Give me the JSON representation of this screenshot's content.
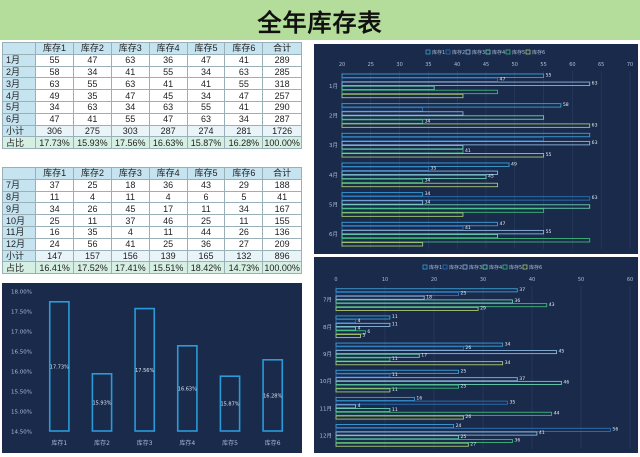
{
  "title": "全年库存表",
  "columns": [
    "",
    "库存1",
    "库存2",
    "库存3",
    "库存4",
    "库存5",
    "库存6",
    "合计"
  ],
  "table1": {
    "rows": [
      {
        "label": "1月",
        "values": [
          "55",
          "47",
          "63",
          "36",
          "47",
          "41",
          "289"
        ]
      },
      {
        "label": "2月",
        "values": [
          "58",
          "34",
          "41",
          "55",
          "34",
          "63",
          "285"
        ]
      },
      {
        "label": "3月",
        "values": [
          "63",
          "55",
          "63",
          "41",
          "41",
          "55",
          "318"
        ]
      },
      {
        "label": "4月",
        "values": [
          "49",
          "35",
          "47",
          "45",
          "34",
          "47",
          "257"
        ]
      },
      {
        "label": "5月",
        "values": [
          "34",
          "63",
          "34",
          "63",
          "55",
          "41",
          "290"
        ]
      },
      {
        "label": "6月",
        "values": [
          "47",
          "41",
          "55",
          "47",
          "63",
          "34",
          "287"
        ]
      },
      {
        "label": "小计",
        "values": [
          "306",
          "275",
          "303",
          "287",
          "274",
          "281",
          "1726"
        ]
      },
      {
        "label": "占比",
        "values": [
          "17.73%",
          "15.93%",
          "17.56%",
          "16.63%",
          "15.87%",
          "16.28%",
          "100.00%"
        ]
      }
    ]
  },
  "table2": {
    "rows": [
      {
        "label": "7月",
        "values": [
          "37",
          "25",
          "18",
          "36",
          "43",
          "29",
          "188"
        ]
      },
      {
        "label": "8月",
        "values": [
          "11",
          "4",
          "11",
          "4",
          "6",
          "5",
          "41"
        ]
      },
      {
        "label": "9月",
        "values": [
          "34",
          "26",
          "45",
          "17",
          "11",
          "34",
          "167"
        ]
      },
      {
        "label": "10月",
        "values": [
          "25",
          "11",
          "37",
          "46",
          "25",
          "11",
          "155"
        ]
      },
      {
        "label": "11月",
        "values": [
          "16",
          "35",
          "4",
          "11",
          "44",
          "26",
          "136"
        ]
      },
      {
        "label": "12月",
        "values": [
          "24",
          "56",
          "41",
          "25",
          "36",
          "27",
          "209"
        ]
      },
      {
        "label": "小计",
        "values": [
          "147",
          "157",
          "156",
          "139",
          "165",
          "132",
          "896"
        ]
      },
      {
        "label": "占比",
        "values": [
          "16.41%",
          "17.52%",
          "17.41%",
          "15.51%",
          "18.42%",
          "14.73%",
          "100.00%"
        ]
      }
    ]
  },
  "colors": {
    "panel": "#1a2a4a",
    "series": [
      "#3aa0d8",
      "#2a72b8",
      "#8ab4dc",
      "#6ad0b0",
      "#3cb878",
      "#a8c870"
    ],
    "bar_outline": "#2a9ad8",
    "axis_text": "#a8bcd8"
  },
  "chart_data": [
    {
      "type": "bar",
      "orientation": "vertical",
      "categories": [
        "库存1",
        "库存2",
        "库存3",
        "库存4",
        "库存5",
        "库存6"
      ],
      "values": [
        17.73,
        15.93,
        17.56,
        16.63,
        15.87,
        16.28
      ],
      "data_labels": [
        "17.73%",
        "15.93%",
        "17.56%",
        "16.63%",
        "15.87%",
        "16.28%"
      ],
      "yticks": [
        "14.50%",
        "15.00%",
        "15.50%",
        "16.00%",
        "16.50%",
        "17.00%",
        "17.50%",
        "18.00%"
      ],
      "ylim": [
        14.5,
        18.0
      ],
      "title": "",
      "xlabel": "",
      "ylabel": "",
      "grid": false
    },
    {
      "type": "bar",
      "orientation": "horizontal",
      "categories": [
        "1月",
        "2月",
        "3月",
        "4月",
        "5月",
        "6月"
      ],
      "legend": [
        "库存1",
        "库存2",
        "库存3",
        "库存4",
        "库存5",
        "库存6"
      ],
      "legend_position": "top",
      "xticks": [
        "20",
        "25",
        "30",
        "35",
        "40",
        "45",
        "50",
        "55",
        "60",
        "65",
        "70"
      ],
      "xlim": [
        20,
        70
      ],
      "series": [
        {
          "name": "库存1",
          "values": [
            55,
            58,
            63,
            49,
            34,
            47
          ]
        },
        {
          "name": "库存2",
          "values": [
            47,
            34,
            55,
            35,
            63,
            41
          ]
        },
        {
          "name": "库存3",
          "values": [
            63,
            41,
            63,
            47,
            34,
            55
          ]
        },
        {
          "name": "库存4",
          "values": [
            36,
            55,
            41,
            45,
            63,
            47
          ]
        },
        {
          "name": "库存5",
          "values": [
            47,
            34,
            41,
            34,
            55,
            63
          ]
        },
        {
          "name": "库存6",
          "values": [
            41,
            63,
            55,
            47,
            41,
            34
          ]
        }
      ],
      "shown_labels": [
        [
          55,
          47,
          63,
          null,
          null,
          null
        ],
        [
          58,
          null,
          null,
          null,
          34,
          41
        ],
        [
          null,
          null,
          63,
          null,
          55,
          63
        ],
        [
          49,
          47,
          null,
          35,
          34,
          null
        ],
        [
          34,
          63,
          34,
          null,
          null,
          null
        ],
        [
          47,
          41,
          55,
          null,
          null,
          null
        ]
      ],
      "grid": true
    },
    {
      "type": "bar",
      "orientation": "horizontal",
      "categories": [
        "7月",
        "8月",
        "9月",
        "10月",
        "11月",
        "12月"
      ],
      "legend": [
        "库存1",
        "库存2",
        "库存3",
        "库存4",
        "库存5",
        "库存6"
      ],
      "legend_position": "top",
      "xticks": [
        "0",
        "10",
        "20",
        "30",
        "40",
        "50",
        "60"
      ],
      "xlim": [
        0,
        60
      ],
      "series": [
        {
          "name": "库存1",
          "values": [
            37,
            11,
            34,
            25,
            16,
            24
          ]
        },
        {
          "name": "库存2",
          "values": [
            25,
            4,
            26,
            11,
            35,
            56
          ]
        },
        {
          "name": "库存3",
          "values": [
            18,
            11,
            45,
            37,
            4,
            41
          ]
        },
        {
          "name": "库存4",
          "values": [
            36,
            4,
            17,
            46,
            11,
            25
          ]
        },
        {
          "name": "库存5",
          "values": [
            43,
            6,
            11,
            25,
            44,
            36
          ]
        },
        {
          "name": "库存6",
          "values": [
            29,
            5,
            34,
            11,
            26,
            27
          ]
        }
      ],
      "grid": true
    }
  ]
}
